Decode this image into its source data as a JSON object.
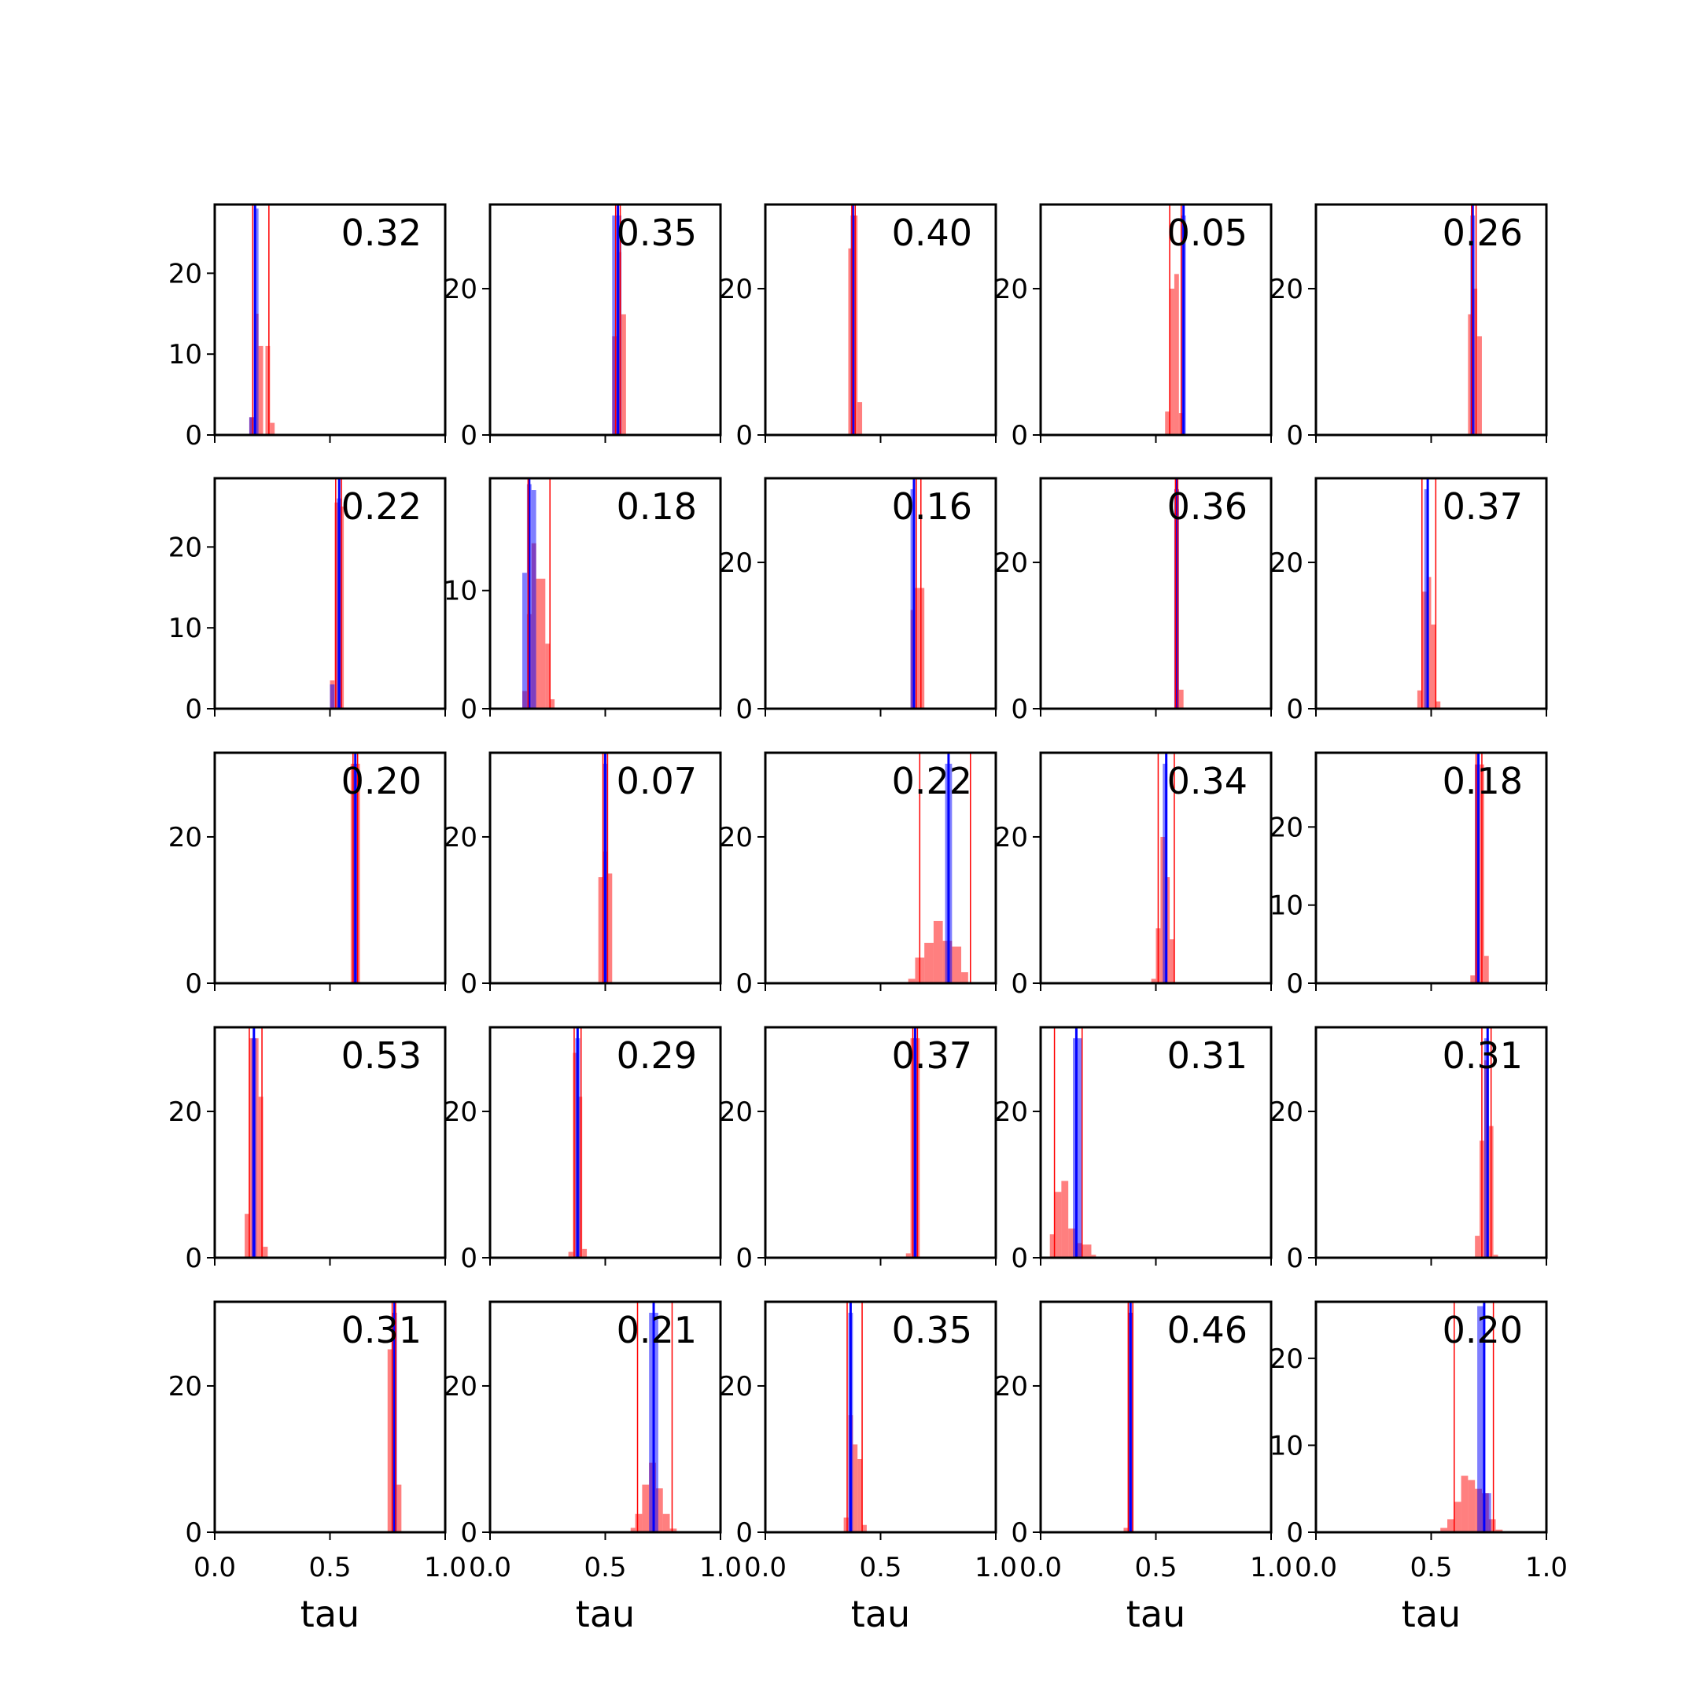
{
  "figure": {
    "xlabel": "tau",
    "colors": {
      "red": "#ff0000",
      "blue": "#0000ff",
      "axes": "#000000"
    },
    "xticks": [
      "0.0",
      "0.5",
      "1.0"
    ]
  },
  "chart_data": [
    {
      "type": "bar",
      "label": "0.32",
      "ylim": [
        0,
        28.5
      ],
      "xlim": [
        0,
        1
      ],
      "yticks": [
        0,
        10,
        20
      ],
      "red_bins": [
        [
          0.15,
          0.17,
          2.2
        ],
        [
          0.18,
          0.19,
          15
        ],
        [
          0.19,
          0.21,
          11
        ],
        [
          0.22,
          0.24,
          11
        ],
        [
          0.24,
          0.26,
          1.5
        ]
      ],
      "blue_bins": [
        [
          0.15,
          0.17,
          2.2
        ],
        [
          0.17,
          0.19,
          28
        ]
      ],
      "blue_lines": [
        0.175
      ],
      "red_lines": [
        0.165,
        0.235
      ]
    },
    {
      "type": "bar",
      "label": "0.35",
      "ylim": [
        0,
        31.5
      ],
      "xlim": [
        0,
        1
      ],
      "yticks": [
        0,
        20
      ],
      "red_bins": [
        [
          0.53,
          0.55,
          13.5
        ],
        [
          0.55,
          0.57,
          25
        ],
        [
          0.57,
          0.59,
          16.5
        ]
      ],
      "blue_bins": [
        [
          0.53,
          0.57,
          30
        ]
      ],
      "blue_lines": [
        0.555
      ],
      "red_lines": [
        0.545,
        0.565
      ]
    },
    {
      "type": "bar",
      "label": "0.40",
      "ylim": [
        0,
        31.5
      ],
      "xlim": [
        0,
        1
      ],
      "yticks": [
        0,
        20
      ],
      "red_bins": [
        [
          0.36,
          0.38,
          25.5
        ],
        [
          0.38,
          0.4,
          30
        ],
        [
          0.4,
          0.42,
          4.5
        ]
      ],
      "blue_bins": [
        [
          0.37,
          0.39,
          30
        ]
      ],
      "blue_lines": [
        0.38
      ],
      "red_lines": [
        0.375,
        0.39
      ]
    },
    {
      "type": "bar",
      "label": "0.05",
      "ylim": [
        0,
        31.5
      ],
      "xlim": [
        0,
        1
      ],
      "yticks": [
        0,
        20
      ],
      "red_bins": [
        [
          0.54,
          0.56,
          3.2
        ],
        [
          0.56,
          0.58,
          20
        ],
        [
          0.58,
          0.6,
          22
        ],
        [
          0.6,
          0.62,
          3
        ]
      ],
      "blue_bins": [
        [
          0.61,
          0.63,
          30
        ]
      ],
      "blue_lines": [
        0.62
      ],
      "red_lines": [
        0.56,
        0.61
      ]
    },
    {
      "type": "bar",
      "label": "0.26",
      "ylim": [
        0,
        31.5
      ],
      "xlim": [
        0,
        1
      ],
      "yticks": [
        0,
        20
      ],
      "red_bins": [
        [
          0.66,
          0.68,
          16.5
        ],
        [
          0.68,
          0.7,
          20
        ],
        [
          0.7,
          0.72,
          13.5
        ]
      ],
      "blue_bins": [
        [
          0.67,
          0.69,
          30
        ]
      ],
      "blue_lines": [
        0.68
      ],
      "red_lines": [
        0.675,
        0.695
      ]
    },
    {
      "type": "bar",
      "label": "0.22",
      "ylim": [
        0,
        28.5
      ],
      "xlim": [
        0,
        1
      ],
      "yticks": [
        0,
        10,
        20
      ],
      "red_bins": [
        [
          0.5,
          0.52,
          3.5
        ],
        [
          0.52,
          0.54,
          25.5
        ],
        [
          0.54,
          0.56,
          25
        ]
      ],
      "blue_bins": [
        [
          0.5,
          0.52,
          3
        ],
        [
          0.53,
          0.55,
          26
        ]
      ],
      "blue_lines": [
        0.54
      ],
      "red_lines": [
        0.525,
        0.55
      ]
    },
    {
      "type": "bar",
      "label": "0.18",
      "ylim": [
        0,
        19.5
      ],
      "xlim": [
        0,
        1
      ],
      "yticks": [
        0,
        10
      ],
      "red_bins": [
        [
          0.14,
          0.16,
          1.5
        ],
        [
          0.16,
          0.18,
          8
        ],
        [
          0.18,
          0.2,
          14
        ],
        [
          0.2,
          0.22,
          11
        ],
        [
          0.22,
          0.24,
          11
        ],
        [
          0.24,
          0.26,
          5.5
        ],
        [
          0.26,
          0.28,
          0.8
        ]
      ],
      "blue_bins": [
        [
          0.14,
          0.16,
          11.5
        ],
        [
          0.16,
          0.18,
          19
        ],
        [
          0.18,
          0.2,
          18.5
        ]
      ],
      "blue_lines": [
        0.17
      ],
      "red_lines": [
        0.165,
        0.26
      ]
    },
    {
      "type": "bar",
      "label": "0.16",
      "ylim": [
        0,
        31.5
      ],
      "xlim": [
        0,
        1
      ],
      "yticks": [
        0,
        20
      ],
      "red_bins": [
        [
          0.63,
          0.65,
          13.5
        ],
        [
          0.65,
          0.67,
          16.5
        ],
        [
          0.67,
          0.69,
          16.5
        ]
      ],
      "blue_bins": [
        [
          0.63,
          0.65,
          30
        ]
      ],
      "blue_lines": [
        0.645
      ],
      "red_lines": [
        0.655,
        0.675
      ]
    },
    {
      "type": "bar",
      "label": "0.36",
      "ylim": [
        0,
        31.5
      ],
      "xlim": [
        0,
        1
      ],
      "yticks": [
        0,
        20
      ],
      "red_bins": [
        [
          0.58,
          0.6,
          30
        ],
        [
          0.6,
          0.62,
          2.6
        ]
      ],
      "blue_bins": [
        [
          0.58,
          0.6,
          30
        ]
      ],
      "blue_lines": [
        0.59
      ],
      "red_lines": [
        0.585,
        0.595
      ]
    },
    {
      "type": "bar",
      "label": "0.37",
      "ylim": [
        0,
        31.5
      ],
      "xlim": [
        0,
        1
      ],
      "yticks": [
        0,
        20
      ],
      "red_bins": [
        [
          0.44,
          0.46,
          2.5
        ],
        [
          0.46,
          0.48,
          16
        ],
        [
          0.48,
          0.5,
          18
        ],
        [
          0.5,
          0.52,
          11.5
        ],
        [
          0.52,
          0.54,
          1
        ]
      ],
      "blue_bins": [
        [
          0.47,
          0.49,
          30
        ]
      ],
      "blue_lines": [
        0.485
      ],
      "red_lines": [
        0.46,
        0.52
      ]
    },
    {
      "type": "bar",
      "label": "0.20",
      "ylim": [
        0,
        31.5
      ],
      "xlim": [
        0,
        1
      ],
      "yticks": [
        0,
        20
      ],
      "red_bins": [
        [
          0.59,
          0.61,
          30
        ],
        [
          0.61,
          0.63,
          30
        ]
      ],
      "blue_bins": [
        [
          0.6,
          0.62,
          30
        ]
      ],
      "blue_lines": [
        0.61
      ],
      "red_lines": [
        0.6,
        0.62
      ]
    },
    {
      "type": "bar",
      "label": "0.07",
      "ylim": [
        0,
        31.5
      ],
      "xlim": [
        0,
        1
      ],
      "yticks": [
        0,
        20
      ],
      "red_bins": [
        [
          0.47,
          0.49,
          14.5
        ],
        [
          0.49,
          0.51,
          18
        ],
        [
          0.51,
          0.53,
          15
        ]
      ],
      "blue_bins": [
        [
          0.49,
          0.51,
          30
        ]
      ],
      "blue_lines": [
        0.5
      ],
      "red_lines": [
        0.49,
        0.51
      ]
    },
    {
      "type": "bar",
      "label": "0.22",
      "ylim": [
        0,
        31.5
      ],
      "xlim": [
        0,
        1
      ],
      "yticks": [
        0,
        20
      ],
      "red_bins": [
        [
          0.62,
          0.65,
          0.6
        ],
        [
          0.65,
          0.69,
          3.5
        ],
        [
          0.69,
          0.73,
          5.5
        ],
        [
          0.73,
          0.77,
          8.5
        ],
        [
          0.77,
          0.81,
          5.8
        ],
        [
          0.81,
          0.85,
          5
        ],
        [
          0.85,
          0.88,
          1.5
        ]
      ],
      "blue_bins": [
        [
          0.78,
          0.81,
          30
        ]
      ],
      "blue_lines": [
        0.795
      ],
      "red_lines": [
        0.67,
        0.89
      ]
    },
    {
      "type": "bar",
      "label": "0.34",
      "ylim": [
        0,
        31.5
      ],
      "xlim": [
        0,
        1
      ],
      "yticks": [
        0,
        20
      ],
      "red_bins": [
        [
          0.48,
          0.5,
          0.6
        ],
        [
          0.5,
          0.52,
          7.5
        ],
        [
          0.52,
          0.54,
          20
        ],
        [
          0.54,
          0.56,
          14.5
        ],
        [
          0.56,
          0.58,
          6
        ]
      ],
      "blue_bins": [
        [
          0.53,
          0.55,
          30
        ]
      ],
      "blue_lines": [
        0.545
      ],
      "red_lines": [
        0.51,
        0.58
      ]
    },
    {
      "type": "bar",
      "label": "0.18",
      "ylim": [
        0,
        29.5
      ],
      "xlim": [
        0,
        1
      ],
      "yticks": [
        0,
        10,
        20
      ],
      "red_bins": [
        [
          0.67,
          0.69,
          1
        ],
        [
          0.69,
          0.71,
          28
        ],
        [
          0.71,
          0.73,
          28
        ],
        [
          0.73,
          0.75,
          3.5
        ]
      ],
      "blue_bins": [
        [
          0.69,
          0.71,
          28
        ]
      ],
      "blue_lines": [
        0.705
      ],
      "red_lines": [
        0.695,
        0.72
      ]
    },
    {
      "type": "bar",
      "label": "0.53",
      "ylim": [
        0,
        31.5
      ],
      "xlim": [
        0,
        1
      ],
      "yticks": [
        0,
        20
      ],
      "red_bins": [
        [
          0.13,
          0.15,
          6
        ],
        [
          0.15,
          0.17,
          30
        ],
        [
          0.17,
          0.19,
          30
        ],
        [
          0.19,
          0.21,
          22
        ],
        [
          0.21,
          0.23,
          1.5
        ]
      ],
      "blue_bins": [
        [
          0.16,
          0.18,
          30
        ]
      ],
      "blue_lines": [
        0.17
      ],
      "red_lines": [
        0.15,
        0.205
      ]
    },
    {
      "type": "bar",
      "label": "0.29",
      "ylim": [
        0,
        31.5
      ],
      "xlim": [
        0,
        1
      ],
      "yticks": [
        0,
        20
      ],
      "red_bins": [
        [
          0.34,
          0.36,
          0.8
        ],
        [
          0.36,
          0.38,
          28
        ],
        [
          0.38,
          0.4,
          22
        ],
        [
          0.4,
          0.42,
          1.2
        ]
      ],
      "blue_bins": [
        [
          0.37,
          0.39,
          30
        ]
      ],
      "blue_lines": [
        0.38
      ],
      "red_lines": [
        0.365,
        0.395
      ]
    },
    {
      "type": "bar",
      "label": "0.37",
      "ylim": [
        0,
        31.5
      ],
      "xlim": [
        0,
        1
      ],
      "yticks": [
        0,
        20
      ],
      "red_bins": [
        [
          0.61,
          0.63,
          0.6
        ],
        [
          0.63,
          0.65,
          30
        ],
        [
          0.65,
          0.67,
          30
        ]
      ],
      "blue_bins": [
        [
          0.64,
          0.66,
          30
        ]
      ],
      "blue_lines": [
        0.65
      ],
      "red_lines": [
        0.64,
        0.66
      ]
    },
    {
      "type": "bar",
      "label": "0.31",
      "ylim": [
        0,
        31.5
      ],
      "xlim": [
        0,
        1
      ],
      "yticks": [
        0,
        20
      ],
      "red_bins": [
        [
          0.04,
          0.06,
          3.2
        ],
        [
          0.06,
          0.09,
          9
        ],
        [
          0.09,
          0.12,
          10.5
        ],
        [
          0.12,
          0.15,
          4
        ],
        [
          0.15,
          0.18,
          2
        ],
        [
          0.18,
          0.22,
          1.8
        ],
        [
          0.22,
          0.24,
          0.4
        ]
      ],
      "blue_bins": [
        [
          0.14,
          0.16,
          30
        ],
        [
          0.16,
          0.18,
          30
        ]
      ],
      "blue_lines": [
        0.155
      ],
      "red_lines": [
        0.06,
        0.18
      ]
    },
    {
      "type": "bar",
      "label": "0.31",
      "ylim": [
        0,
        31.5
      ],
      "xlim": [
        0,
        1
      ],
      "yticks": [
        0,
        20
      ],
      "red_bins": [
        [
          0.69,
          0.71,
          3
        ],
        [
          0.71,
          0.73,
          16
        ],
        [
          0.73,
          0.75,
          27
        ],
        [
          0.75,
          0.77,
          18
        ],
        [
          0.77,
          0.79,
          0.4
        ]
      ],
      "blue_bins": [
        [
          0.73,
          0.75,
          30
        ]
      ],
      "blue_lines": [
        0.745
      ],
      "red_lines": [
        0.72,
        0.76
      ]
    },
    {
      "type": "bar",
      "label": "0.31",
      "ylim": [
        0,
        31.5
      ],
      "xlim": [
        0,
        1
      ],
      "yticks": [
        0,
        20
      ],
      "red_bins": [
        [
          0.75,
          0.77,
          25
        ],
        [
          0.77,
          0.79,
          30
        ],
        [
          0.79,
          0.81,
          6.5
        ]
      ],
      "blue_bins": [
        [
          0.77,
          0.79,
          30
        ]
      ],
      "blue_lines": [
        0.78
      ],
      "red_lines": [
        0.77,
        0.785
      ]
    },
    {
      "type": "bar",
      "label": "0.21",
      "ylim": [
        0,
        31.5
      ],
      "xlim": [
        0,
        1
      ],
      "yticks": [
        0,
        20
      ],
      "red_bins": [
        [
          0.61,
          0.63,
          0.6
        ],
        [
          0.63,
          0.66,
          2.5
        ],
        [
          0.66,
          0.69,
          6.5
        ],
        [
          0.69,
          0.72,
          9.5
        ],
        [
          0.72,
          0.75,
          6
        ],
        [
          0.75,
          0.78,
          2.5
        ],
        [
          0.78,
          0.81,
          0.5
        ]
      ],
      "blue_bins": [
        [
          0.69,
          0.73,
          30
        ]
      ],
      "blue_lines": [
        0.71
      ],
      "red_lines": [
        0.64,
        0.79
      ]
    },
    {
      "type": "bar",
      "label": "0.35",
      "ylim": [
        0,
        31.5
      ],
      "xlim": [
        0,
        1
      ],
      "yticks": [
        0,
        20
      ],
      "red_bins": [
        [
          0.34,
          0.36,
          2
        ],
        [
          0.36,
          0.38,
          16
        ],
        [
          0.38,
          0.4,
          12
        ],
        [
          0.4,
          0.42,
          10
        ],
        [
          0.42,
          0.44,
          1
        ]
      ],
      "blue_bins": [
        [
          0.36,
          0.38,
          30
        ]
      ],
      "blue_lines": [
        0.37
      ],
      "red_lines": [
        0.355,
        0.42
      ]
    },
    {
      "type": "bar",
      "label": "0.46",
      "ylim": [
        0,
        31.5
      ],
      "xlim": [
        0,
        1
      ],
      "yticks": [
        0,
        20
      ],
      "red_bins": [
        [
          0.36,
          0.38,
          0.6
        ],
        [
          0.38,
          0.4,
          30
        ]
      ],
      "blue_bins": [
        [
          0.38,
          0.4,
          30
        ]
      ],
      "blue_lines": [
        0.39
      ],
      "red_lines": [
        0.38,
        0.4
      ]
    },
    {
      "type": "bar",
      "label": "0.20",
      "ylim": [
        0,
        26.5
      ],
      "xlim": [
        0,
        1
      ],
      "yticks": [
        0,
        10,
        20
      ],
      "red_bins": [
        [
          0.54,
          0.57,
          0.5
        ],
        [
          0.57,
          0.6,
          1.5
        ],
        [
          0.6,
          0.63,
          3.5
        ],
        [
          0.63,
          0.66,
          6.5
        ],
        [
          0.66,
          0.69,
          6
        ],
        [
          0.69,
          0.72,
          5
        ],
        [
          0.72,
          0.75,
          4.5
        ],
        [
          0.75,
          0.78,
          1.5
        ],
        [
          0.78,
          0.81,
          0.3
        ]
      ],
      "blue_bins": [
        [
          0.7,
          0.73,
          26
        ],
        [
          0.73,
          0.76,
          4.5
        ]
      ],
      "blue_lines": [
        0.73
      ],
      "red_lines": [
        0.6,
        0.77
      ]
    }
  ]
}
